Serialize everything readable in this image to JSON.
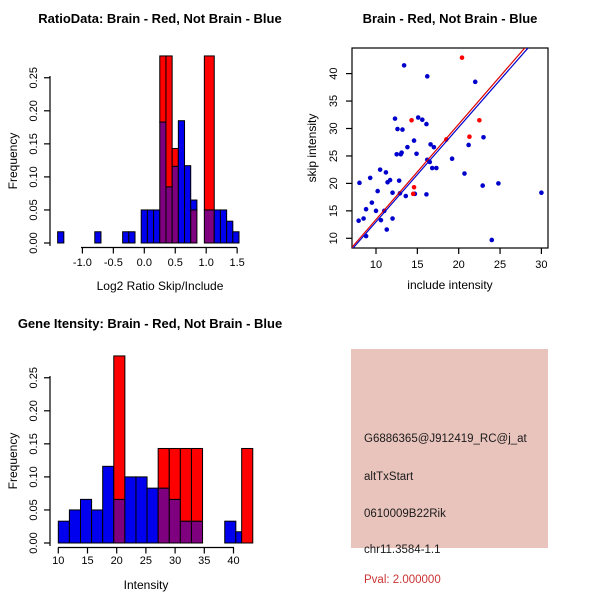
{
  "colors": {
    "hist_blue": "#0000EE",
    "hist_red": "#FF0000",
    "overlap_purple": "#7F007F",
    "scatter_blue": "#0000CD",
    "scatter_red": "#FF0000",
    "line_red": "#DD0000",
    "line_blue": "#0000CC",
    "axis": "#000000",
    "info_bg": "#E9C4BC",
    "pval_red": "#CC3333",
    "background": "#FFFFFF"
  },
  "info_box": {
    "lines": [
      "G6886365@J912419_RC@j_at",
      "altTxStart",
      "0610009B22Rik",
      "chr11.3584-1.1"
    ],
    "pval_line": "Pval: 2.000000"
  },
  "chart_data": [
    {
      "id": "ratio_hist",
      "type": "histogram-overlay",
      "title": "RatioData: Brain - Red, Not Brain - Blue",
      "xlabel": "Log2 Ratio Skip/Include",
      "ylabel": "Frequency",
      "legend_note": "Brain histogram red, Not-Brain histogram blue, overlap purple",
      "xlim": [
        -1.45,
        1.6
      ],
      "ylim": [
        0,
        0.283
      ],
      "bin_width": 0.1,
      "xticks": [
        -1.0,
        -0.5,
        0.0,
        0.5,
        1.0,
        1.5
      ],
      "xtick_labels": [
        "-1.0",
        "-0.5",
        "0.0",
        "0.5",
        "1.0",
        "1.5"
      ],
      "yticks": [
        0.0,
        0.05,
        0.1,
        0.15,
        0.2,
        0.25
      ],
      "ytick_labels": [
        "0.00",
        "0.05",
        "0.10",
        "0.15",
        "0.20",
        "0.25"
      ],
      "bars": [
        {
          "x": -1.4,
          "w": 0.1,
          "blue": 0.017
        },
        {
          "x": -0.8,
          "w": 0.1,
          "blue": 0.017
        },
        {
          "x": -0.35,
          "w": 0.1,
          "blue": 0.017
        },
        {
          "x": -0.25,
          "w": 0.1,
          "blue": 0.017
        },
        {
          "x": -0.05,
          "w": 0.1,
          "blue": 0.05
        },
        {
          "x": 0.05,
          "w": 0.1,
          "blue": 0.05
        },
        {
          "x": 0.15,
          "w": 0.1,
          "blue": 0.05
        },
        {
          "x": 0.25,
          "w": 0.1,
          "red": 0.283,
          "overlap": 0.183
        },
        {
          "x": 0.35,
          "w": 0.1,
          "red": 0.283,
          "overlap": 0.085
        },
        {
          "x": 0.45,
          "w": 0.1,
          "red": 0.143,
          "overlap": 0.116
        },
        {
          "x": 0.55,
          "w": 0.1,
          "blue": 0.185
        },
        {
          "x": 0.65,
          "w": 0.1,
          "blue": 0.117
        },
        {
          "x": 0.75,
          "w": 0.1,
          "blue": 0.065,
          "overlap": 0.05
        },
        {
          "x": 0.97,
          "w": 0.16,
          "red": 0.283,
          "overlap": 0.05
        },
        {
          "x": 1.13,
          "w": 0.1,
          "blue": 0.05
        },
        {
          "x": 1.23,
          "w": 0.1,
          "blue": 0.05
        },
        {
          "x": 1.33,
          "w": 0.1,
          "blue": 0.033
        },
        {
          "x": 1.43,
          "w": 0.1,
          "blue": 0.017
        }
      ]
    },
    {
      "id": "scatter",
      "type": "scatter",
      "title": "Brain - Red, Not Brain - Blue",
      "xlabel": "include intensity",
      "ylabel": "skip intensity",
      "xlim": [
        7.1,
        30.8
      ],
      "ylim": [
        8.2,
        44.7
      ],
      "xticks": [
        10,
        15,
        20,
        25,
        30
      ],
      "xtick_labels": [
        "10",
        "15",
        "20",
        "25",
        "30"
      ],
      "yticks": [
        10,
        15,
        20,
        25,
        30,
        35,
        40
      ],
      "ytick_labels": [
        "10",
        "15",
        "20",
        "25",
        "30",
        "35",
        "40"
      ],
      "points_blue": [
        [
          13.4,
          41.5
        ],
        [
          16.2,
          39.5
        ],
        [
          22.0,
          38.5
        ],
        [
          12.3,
          31.8
        ],
        [
          15.1,
          32.0
        ],
        [
          15.6,
          31.6
        ],
        [
          16.1,
          30.8
        ],
        [
          12.6,
          29.9
        ],
        [
          13.2,
          29.8
        ],
        [
          14.6,
          27.8
        ],
        [
          23.0,
          28.4
        ],
        [
          16.6,
          27.1
        ],
        [
          17.0,
          26.6
        ],
        [
          13.8,
          26.6
        ],
        [
          21.2,
          27.0
        ],
        [
          13.1,
          25.6
        ],
        [
          12.5,
          25.3
        ],
        [
          13.0,
          25.3
        ],
        [
          14.9,
          25.4
        ],
        [
          19.2,
          24.5
        ],
        [
          16.2,
          24.3
        ],
        [
          16.5,
          23.9
        ],
        [
          16.8,
          22.8
        ],
        [
          17.3,
          22.8
        ],
        [
          10.5,
          22.5
        ],
        [
          11.2,
          22.0
        ],
        [
          20.7,
          21.8
        ],
        [
          11.7,
          20.6
        ],
        [
          11.4,
          20.2
        ],
        [
          8.0,
          20.1
        ],
        [
          9.3,
          21.0
        ],
        [
          12.8,
          20.5
        ],
        [
          24.8,
          20.0
        ],
        [
          22.9,
          19.6
        ],
        [
          12.0,
          18.3
        ],
        [
          12.9,
          18.2
        ],
        [
          13.6,
          17.7
        ],
        [
          14.7,
          18.1
        ],
        [
          16.1,
          18.0
        ],
        [
          10.2,
          18.6
        ],
        [
          30.0,
          18.3
        ],
        [
          9.5,
          16.5
        ],
        [
          8.8,
          15.3
        ],
        [
          10.0,
          15.0
        ],
        [
          11.0,
          15.0
        ],
        [
          8.5,
          13.6
        ],
        [
          7.9,
          13.2
        ],
        [
          10.6,
          13.3
        ],
        [
          12.0,
          13.6
        ],
        [
          11.3,
          11.6
        ],
        [
          8.8,
          10.4
        ],
        [
          24.0,
          9.7
        ]
      ],
      "points_red": [
        [
          20.4,
          42.9
        ],
        [
          22.5,
          31.5
        ],
        [
          14.3,
          31.5
        ],
        [
          21.3,
          28.5
        ],
        [
          18.5,
          28.0
        ],
        [
          14.6,
          19.3
        ],
        [
          14.5,
          18.1
        ]
      ],
      "lines": [
        {
          "name": "fit-brain-red",
          "p1": [
            7.0,
            8.2
          ],
          "p2": [
            28.0,
            44.7
          ]
        },
        {
          "name": "fit-notbrain-blue",
          "p1": [
            7.1,
            8.0
          ],
          "p2": [
            28.4,
            44.7
          ]
        }
      ]
    },
    {
      "id": "gene_hist",
      "type": "histogram-overlay",
      "title": "Gene Itensity: Brain - Red, Not Brain - Blue",
      "xlabel": "Intensity",
      "ylabel": "Frequency",
      "legend_note": "Brain histogram red, Not-Brain histogram blue, overlap purple",
      "xlim": [
        9,
        44
      ],
      "ylim": [
        0,
        0.283
      ],
      "bin_width": 1.9,
      "xticks": [
        10,
        15,
        20,
        25,
        30,
        35,
        40
      ],
      "xtick_labels": [
        "10",
        "15",
        "20",
        "25",
        "30",
        "35",
        "40"
      ],
      "yticks": [
        0.0,
        0.05,
        0.1,
        0.15,
        0.2,
        0.25
      ],
      "ytick_labels": [
        "0.00",
        "0.05",
        "0.10",
        "0.15",
        "0.20",
        "0.25"
      ],
      "bars": [
        {
          "x": 10.0,
          "w": 1.9,
          "blue": 0.033
        },
        {
          "x": 11.9,
          "w": 1.9,
          "blue": 0.05
        },
        {
          "x": 13.8,
          "w": 1.9,
          "blue": 0.066
        },
        {
          "x": 15.7,
          "w": 1.9,
          "blue": 0.05
        },
        {
          "x": 17.6,
          "w": 1.9,
          "blue": 0.116
        },
        {
          "x": 19.5,
          "w": 1.9,
          "red": 0.283,
          "overlap": 0.066
        },
        {
          "x": 21.4,
          "w": 1.9,
          "blue": 0.1
        },
        {
          "x": 23.3,
          "w": 1.9,
          "blue": 0.1
        },
        {
          "x": 25.2,
          "w": 1.9,
          "blue": 0.083
        },
        {
          "x": 27.1,
          "w": 1.9,
          "red": 0.143,
          "overlap": 0.083
        },
        {
          "x": 29.0,
          "w": 1.9,
          "red": 0.143,
          "overlap": 0.066
        },
        {
          "x": 30.9,
          "w": 1.9,
          "red": 0.143,
          "overlap": 0.033
        },
        {
          "x": 32.8,
          "w": 1.9,
          "red": 0.143,
          "overlap": 0.033
        },
        {
          "x": 38.5,
          "w": 1.9,
          "blue": 0.033
        },
        {
          "x": 40.4,
          "w": 1.0,
          "blue": 0.017
        },
        {
          "x": 41.4,
          "w": 1.9,
          "red": 0.143
        }
      ]
    }
  ]
}
